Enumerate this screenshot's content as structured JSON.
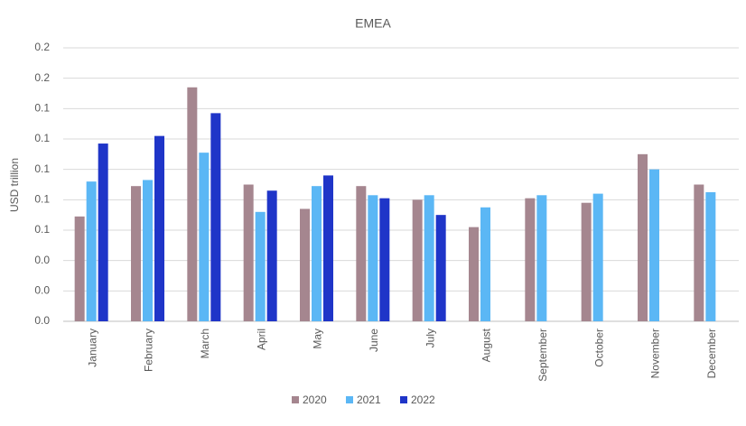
{
  "chart_data": {
    "type": "bar",
    "title": "EMEA",
    "y_label": "USD trillion",
    "categories": [
      "January",
      "February",
      "March",
      "April",
      "May",
      "June",
      "July",
      "August",
      "September",
      "October",
      "November",
      "December"
    ],
    "series": [
      {
        "name": "2020",
        "color": "#a5868f",
        "values": [
          0.069,
          0.089,
          0.154,
          0.09,
          0.074,
          0.089,
          0.08,
          0.062,
          0.081,
          0.078,
          0.11,
          0.09
        ]
      },
      {
        "name": "2021",
        "color": "#5bb7f5",
        "values": [
          0.092,
          0.093,
          0.111,
          0.072,
          0.089,
          0.083,
          0.083,
          0.075,
          0.083,
          0.084,
          0.1,
          0.085
        ]
      },
      {
        "name": "2022",
        "color": "#1f35c8",
        "values": [
          0.117,
          0.122,
          0.137,
          0.086,
          0.096,
          0.081,
          0.07,
          null,
          null,
          null,
          null,
          null
        ]
      }
    ],
    "ylim": [
      0,
      0.18
    ],
    "yticks": [
      {
        "value": 0,
        "label": "0.0"
      },
      {
        "value": 0.02,
        "label": "0.0"
      },
      {
        "value": 0.04,
        "label": "0.0"
      },
      {
        "value": 0.06,
        "label": "0.1"
      },
      {
        "value": 0.08,
        "label": "0.1"
      },
      {
        "value": 0.1,
        "label": "0.1"
      },
      {
        "value": 0.12,
        "label": "0.1"
      },
      {
        "value": 0.14,
        "label": "0.1"
      },
      {
        "value": 0.16,
        "label": "0.2"
      },
      {
        "value": 0.18,
        "label": "0.2"
      }
    ],
    "grid": true,
    "legend": "bottom"
  }
}
